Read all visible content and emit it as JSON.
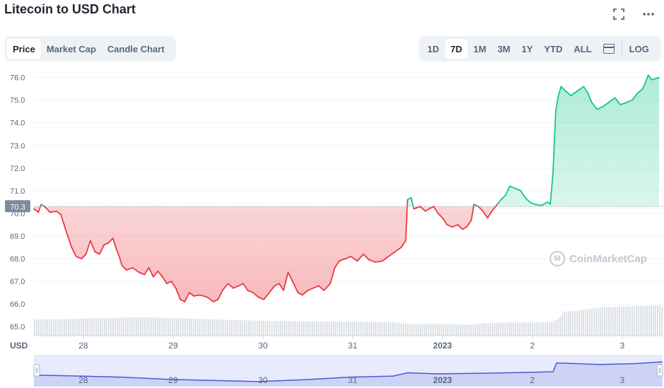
{
  "title": "Litecoin to USD Chart",
  "icons": {
    "fullscreen": "fullscreen-icon",
    "more": "more-icon",
    "calendar": "calendar-icon"
  },
  "tabs": [
    {
      "label": "Price",
      "active": true
    },
    {
      "label": "Market Cap",
      "active": false
    },
    {
      "label": "Candle Chart",
      "active": false
    }
  ],
  "ranges": [
    {
      "label": "1D",
      "active": false
    },
    {
      "label": "7D",
      "active": true
    },
    {
      "label": "1M",
      "active": false
    },
    {
      "label": "3M",
      "active": false
    },
    {
      "label": "1Y",
      "active": false
    },
    {
      "label": "YTD",
      "active": false
    },
    {
      "label": "ALL",
      "active": false
    }
  ],
  "log_label": "LOG",
  "watermark": "CoinMarketCap",
  "colors": {
    "up": "#16c784",
    "down": "#ea3943",
    "navigator": "#4a58d8",
    "grid": "#eff2f5"
  },
  "chart_data": {
    "type": "line",
    "ylim": [
      64.6,
      76.3
    ],
    "y_ticks": [
      65.0,
      66.0,
      67.0,
      68.0,
      69.0,
      70.0,
      71.0,
      72.0,
      73.0,
      74.0,
      75.0,
      76.0
    ],
    "y_tick_labels": [
      "65.0",
      "66.0",
      "67.0",
      "68.0",
      "69.0",
      "70.0",
      "71.0",
      "72.0",
      "73.0",
      "74.0",
      "75.0",
      "76.0"
    ],
    "baseline": 70.3,
    "baseline_label": "70.3",
    "currency_label": "USD",
    "x_range": [
      0,
      7
    ],
    "x_ticks": [
      {
        "x": 0.55,
        "label": "28"
      },
      {
        "x": 1.55,
        "label": "29"
      },
      {
        "x": 2.55,
        "label": "30"
      },
      {
        "x": 3.55,
        "label": "31"
      },
      {
        "x": 4.55,
        "label": "2023"
      },
      {
        "x": 5.55,
        "label": "2"
      },
      {
        "x": 6.55,
        "label": "3"
      }
    ],
    "price_points": [
      [
        0.0,
        70.2
      ],
      [
        0.05,
        70.05
      ],
      [
        0.08,
        70.4
      ],
      [
        0.12,
        70.3
      ],
      [
        0.18,
        70.05
      ],
      [
        0.25,
        70.1
      ],
      [
        0.3,
        69.95
      ],
      [
        0.36,
        69.2
      ],
      [
        0.42,
        68.5
      ],
      [
        0.47,
        68.1
      ],
      [
        0.53,
        68.0
      ],
      [
        0.58,
        68.2
      ],
      [
        0.63,
        68.8
      ],
      [
        0.68,
        68.3
      ],
      [
        0.73,
        68.2
      ],
      [
        0.78,
        68.6
      ],
      [
        0.83,
        68.7
      ],
      [
        0.88,
        68.9
      ],
      [
        0.92,
        68.4
      ],
      [
        0.95,
        68.1
      ],
      [
        0.98,
        67.7
      ],
      [
        1.03,
        67.5
      ],
      [
        1.1,
        67.6
      ],
      [
        1.17,
        67.4
      ],
      [
        1.23,
        67.3
      ],
      [
        1.28,
        67.6
      ],
      [
        1.33,
        67.2
      ],
      [
        1.38,
        67.45
      ],
      [
        1.43,
        67.2
      ],
      [
        1.48,
        66.9
      ],
      [
        1.53,
        67.0
      ],
      [
        1.58,
        66.7
      ],
      [
        1.63,
        66.2
      ],
      [
        1.68,
        66.1
      ],
      [
        1.73,
        66.5
      ],
      [
        1.78,
        66.35
      ],
      [
        1.85,
        66.4
      ],
      [
        1.93,
        66.3
      ],
      [
        2.0,
        66.1
      ],
      [
        2.05,
        66.2
      ],
      [
        2.1,
        66.6
      ],
      [
        2.16,
        66.9
      ],
      [
        2.22,
        66.7
      ],
      [
        2.28,
        66.8
      ],
      [
        2.33,
        66.9
      ],
      [
        2.38,
        66.6
      ],
      [
        2.44,
        66.5
      ],
      [
        2.5,
        66.3
      ],
      [
        2.56,
        66.2
      ],
      [
        2.62,
        66.5
      ],
      [
        2.68,
        66.8
      ],
      [
        2.73,
        66.9
      ],
      [
        2.78,
        66.6
      ],
      [
        2.83,
        67.4
      ],
      [
        2.88,
        67.0
      ],
      [
        2.94,
        66.5
      ],
      [
        2.99,
        66.4
      ],
      [
        3.05,
        66.6
      ],
      [
        3.11,
        66.7
      ],
      [
        3.17,
        66.8
      ],
      [
        3.23,
        66.6
      ],
      [
        3.3,
        66.9
      ],
      [
        3.35,
        67.6
      ],
      [
        3.4,
        67.9
      ],
      [
        3.47,
        68.0
      ],
      [
        3.53,
        68.1
      ],
      [
        3.6,
        67.9
      ],
      [
        3.67,
        68.2
      ],
      [
        3.73,
        67.95
      ],
      [
        3.8,
        67.85
      ],
      [
        3.88,
        67.9
      ],
      [
        3.95,
        68.1
      ],
      [
        4.02,
        68.3
      ],
      [
        4.09,
        68.5
      ],
      [
        4.14,
        68.8
      ],
      [
        4.16,
        70.6
      ],
      [
        4.2,
        70.7
      ],
      [
        4.23,
        70.2
      ],
      [
        4.3,
        70.3
      ],
      [
        4.36,
        70.1
      ],
      [
        4.4,
        70.2
      ],
      [
        4.45,
        70.3
      ],
      [
        4.5,
        70.0
      ],
      [
        4.55,
        69.8
      ],
      [
        4.6,
        69.5
      ],
      [
        4.66,
        69.4
      ],
      [
        4.72,
        69.5
      ],
      [
        4.77,
        69.3
      ],
      [
        4.82,
        69.4
      ],
      [
        4.87,
        69.7
      ],
      [
        4.9,
        70.4
      ],
      [
        4.95,
        70.3
      ],
      [
        5.0,
        70.1
      ],
      [
        5.05,
        69.8
      ],
      [
        5.1,
        70.1
      ],
      [
        5.16,
        70.4
      ],
      [
        5.2,
        70.6
      ],
      [
        5.25,
        70.8
      ],
      [
        5.3,
        71.2
      ],
      [
        5.36,
        71.1
      ],
      [
        5.42,
        71.0
      ],
      [
        5.47,
        70.7
      ],
      [
        5.52,
        70.5
      ],
      [
        5.58,
        70.4
      ],
      [
        5.65,
        70.35
      ],
      [
        5.72,
        70.5
      ],
      [
        5.75,
        70.4
      ],
      [
        5.78,
        71.8
      ],
      [
        5.81,
        74.5
      ],
      [
        5.84,
        75.2
      ],
      [
        5.87,
        75.6
      ],
      [
        5.92,
        75.4
      ],
      [
        5.98,
        75.2
      ],
      [
        6.05,
        75.4
      ],
      [
        6.12,
        75.6
      ],
      [
        6.17,
        75.3
      ],
      [
        6.21,
        74.9
      ],
      [
        6.27,
        74.6
      ],
      [
        6.33,
        74.7
      ],
      [
        6.4,
        74.9
      ],
      [
        6.47,
        75.1
      ],
      [
        6.53,
        74.8
      ],
      [
        6.6,
        74.9
      ],
      [
        6.66,
        75.0
      ],
      [
        6.72,
        75.3
      ],
      [
        6.78,
        75.5
      ],
      [
        6.84,
        76.1
      ],
      [
        6.88,
        75.9
      ],
      [
        6.92,
        75.95
      ],
      [
        6.96,
        76.0
      ]
    ],
    "volume_points": [
      [
        0.0,
        0.22
      ],
      [
        0.3,
        0.22
      ],
      [
        0.5,
        0.23
      ],
      [
        0.9,
        0.24
      ],
      [
        1.2,
        0.25
      ],
      [
        1.5,
        0.24
      ],
      [
        2.0,
        0.22
      ],
      [
        2.6,
        0.2
      ],
      [
        3.2,
        0.19
      ],
      [
        3.6,
        0.19
      ],
      [
        4.0,
        0.18
      ],
      [
        4.15,
        0.16
      ],
      [
        4.5,
        0.16
      ],
      [
        4.9,
        0.15
      ],
      [
        5.0,
        0.17
      ],
      [
        5.3,
        0.18
      ],
      [
        5.75,
        0.18
      ],
      [
        5.82,
        0.22
      ],
      [
        5.9,
        0.32
      ],
      [
        6.3,
        0.38
      ],
      [
        6.7,
        0.4
      ],
      [
        6.96,
        0.41
      ],
      [
        7.0,
        0.36
      ]
    ],
    "navigator_points": [
      [
        0.0,
        0.4
      ],
      [
        0.5,
        0.35
      ],
      [
        1.0,
        0.3
      ],
      [
        1.5,
        0.2
      ],
      [
        2.0,
        0.15
      ],
      [
        2.5,
        0.1
      ],
      [
        3.0,
        0.18
      ],
      [
        3.5,
        0.3
      ],
      [
        4.0,
        0.35
      ],
      [
        4.16,
        0.5
      ],
      [
        4.5,
        0.45
      ],
      [
        5.0,
        0.48
      ],
      [
        5.5,
        0.52
      ],
      [
        5.78,
        0.55
      ],
      [
        5.82,
        0.95
      ],
      [
        6.3,
        0.88
      ],
      [
        6.7,
        0.92
      ],
      [
        7.0,
        1.0
      ]
    ]
  }
}
